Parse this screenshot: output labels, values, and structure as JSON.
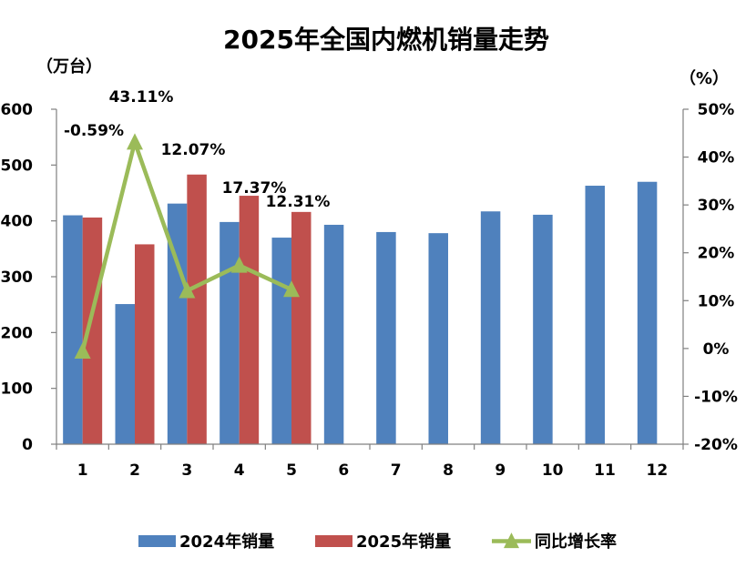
{
  "chart_data": {
    "type": "bar",
    "title": "2025年全国内燃机销量走势",
    "ylabel": "（万台）",
    "y2label": "（%）",
    "categories": [
      "1",
      "2",
      "3",
      "4",
      "5",
      "6",
      "7",
      "8",
      "9",
      "10",
      "11",
      "12"
    ],
    "ylim": [
      0,
      600
    ],
    "yticks": [
      0,
      100,
      200,
      300,
      400,
      500,
      600
    ],
    "y2lim": [
      -20,
      50
    ],
    "y2ticks": [
      -20,
      -10,
      0,
      10,
      20,
      30,
      40,
      50
    ],
    "y2tick_labels": [
      "-20%",
      "-10%",
      "0%",
      "10%",
      "20%",
      "30%",
      "40%",
      "50%"
    ],
    "grid": false,
    "legend": "bottom",
    "series": [
      {
        "name": "2024年销量",
        "type": "bar",
        "axis": "left",
        "color": "#4F81BD",
        "values": [
          410,
          251,
          431,
          398,
          370,
          393,
          380,
          378,
          417,
          411,
          463,
          470
        ]
      },
      {
        "name": "2025年销量",
        "type": "bar",
        "axis": "left",
        "color": "#C0504D",
        "values": [
          406,
          358,
          483,
          445,
          416,
          null,
          null,
          null,
          null,
          null,
          null,
          null
        ]
      },
      {
        "name": "同比增长率",
        "type": "line",
        "axis": "right",
        "color": "#9BBB59",
        "marker": "triangle",
        "values": [
          -0.59,
          43.11,
          12.07,
          17.37,
          12.31,
          null,
          null,
          null,
          null,
          null,
          null,
          null
        ],
        "data_labels": [
          "-0.59%",
          "43.11%",
          "12.07%",
          "17.37%",
          "12.31%"
        ]
      }
    ]
  }
}
